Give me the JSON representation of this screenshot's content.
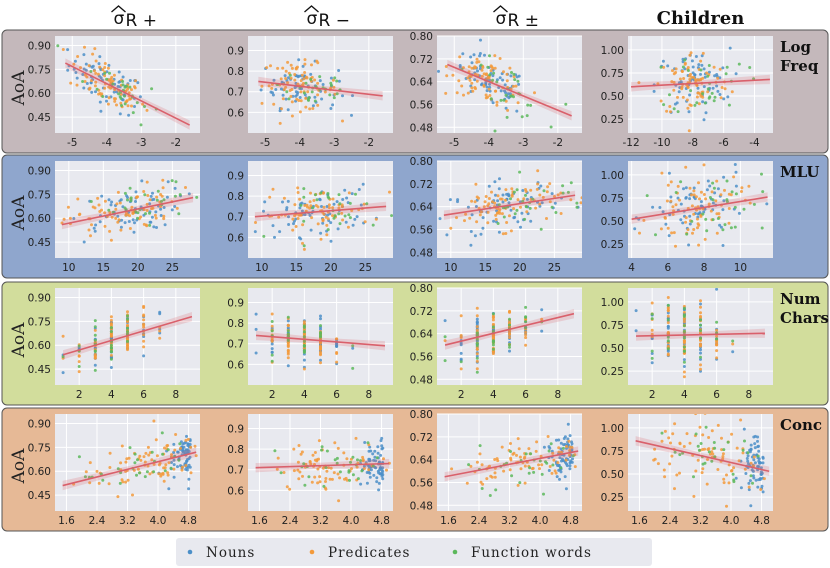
{
  "colors": {
    "Nouns": "#4c8fc8",
    "Predicates": "#f39a3b",
    "Function words": "#5cb85c",
    "fit": "#d9606b",
    "panel_bg": "#e8e9ef",
    "row_bg": [
      "#c4b8bb",
      "#8fa6cd",
      "#d2dd9c",
      "#e6b996"
    ]
  },
  "chart_data": {
    "type": "scatter",
    "y_axis_label": "AoA",
    "columns": [
      "σR+",
      "σR−",
      "σR±",
      "Children"
    ],
    "column_titles": [
      {
        "text": "σ",
        "sub": "R +",
        "hat": true
      },
      {
        "text": "σ",
        "sub": "R −",
        "hat": true
      },
      {
        "text": "σ",
        "sub": "R ±",
        "hat": true
      },
      {
        "text": "Children",
        "hat": false
      }
    ],
    "rows": [
      {
        "label": [
          "Log",
          "Freq"
        ],
        "xlim": [
          -5.5,
          -1.3
        ],
        "xticks": [
          -5,
          -4,
          -3,
          -2
        ],
        "xlim_children": [
          -12.2,
          -2.8
        ],
        "xticks_children": [
          -12,
          -10,
          -8,
          -6,
          -4
        ],
        "xcenter": -4.0,
        "xspread": 0.55,
        "xcenter_children": -8.0,
        "xspread_children": 1.2
      },
      {
        "label": [
          "MLU"
        ],
        "xlim": [
          8,
          29
        ],
        "xticks": [
          10,
          15,
          20,
          25
        ],
        "xlim_children": [
          3.8,
          11.8
        ],
        "xticks_children": [
          4,
          6,
          8,
          10
        ],
        "xcenter": 18,
        "xspread": 4,
        "xcenter_children": 7.6,
        "xspread_children": 1.3
      },
      {
        "label": [
          "Num",
          "Chars"
        ],
        "xlim": [
          0.5,
          9.5
        ],
        "xticks": [
          2,
          4,
          6,
          8
        ],
        "xlim_children": [
          0.5,
          9.5
        ],
        "xticks_children": [
          2,
          4,
          6,
          8
        ],
        "xcenter": 4,
        "xspread": 1.2,
        "xcenter_children": 4,
        "xspread_children": 1.2,
        "discrete": true
      },
      {
        "label": [
          "Conc"
        ],
        "xlim": [
          1.3,
          5.1
        ],
        "xticks": [
          1.6,
          2.4,
          3.2,
          4.0,
          4.8
        ],
        "xlim_children": [
          1.3,
          5.1
        ],
        "xticks_children": [
          1.6,
          2.4,
          3.2,
          4.0,
          4.8
        ],
        "xcenter": 3.6,
        "xspread": 0.8,
        "xcenter_children": 3.6,
        "xspread_children": 0.8,
        "skew_high": true
      }
    ],
    "ylims": [
      {
        "ylim": [
          0.35,
          0.96
        ],
        "yticks": [
          "0.90",
          "0.75",
          "0.60",
          "0.45"
        ],
        "yvals": [
          0.9,
          0.75,
          0.6,
          0.45
        ]
      },
      {
        "ylim": [
          0.5,
          0.97
        ],
        "yticks": [
          "0.9",
          "0.8",
          "0.7",
          "0.6"
        ],
        "yvals": [
          0.9,
          0.8,
          0.7,
          0.6
        ]
      },
      {
        "ylim": [
          0.46,
          0.8
        ],
        "yticks": [
          "0.80",
          "0.72",
          "0.64",
          "0.56",
          "0.48"
        ],
        "yvals": [
          0.8,
          0.72,
          0.64,
          0.56,
          0.48
        ]
      },
      {
        "ylim": [
          0.1,
          1.15
        ],
        "yticks": [
          "1.00",
          "0.75",
          "0.50",
          "0.25"
        ],
        "yvals": [
          1.0,
          0.75,
          0.5,
          0.25
        ]
      }
    ],
    "fits": [
      [
        [
          -5.2,
          0.79,
          -1.6,
          0.4
        ],
        [
          -5.2,
          0.75,
          -1.6,
          0.68
        ],
        [
          -5.2,
          0.7,
          -1.6,
          0.52
        ],
        [
          -12,
          0.6,
          -3,
          0.68
        ]
      ],
      [
        [
          9,
          0.56,
          28,
          0.73
        ],
        [
          9,
          0.7,
          28,
          0.75
        ],
        [
          9,
          0.61,
          28,
          0.68
        ],
        [
          4,
          0.52,
          11.5,
          0.76
        ]
      ],
      [
        [
          1,
          0.54,
          9,
          0.78
        ],
        [
          1,
          0.74,
          9,
          0.69
        ],
        [
          1,
          0.6,
          9,
          0.71
        ],
        [
          1,
          0.63,
          9,
          0.66
        ]
      ],
      [
        [
          1.5,
          0.51,
          5.0,
          0.72
        ],
        [
          1.5,
          0.71,
          5.0,
          0.73
        ],
        [
          1.5,
          0.58,
          5.0,
          0.67
        ],
        [
          1.5,
          0.86,
          5.0,
          0.53
        ]
      ]
    ],
    "legend": [
      "Nouns",
      "Predicates",
      "Function words"
    ]
  }
}
